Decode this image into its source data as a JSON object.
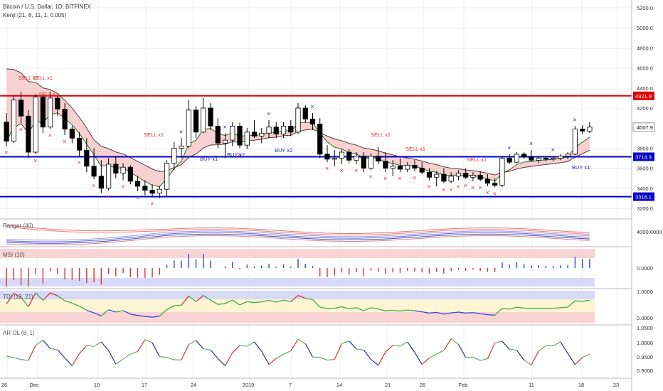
{
  "header": {
    "title": "Bitcoin / U.S. Dollar, 1D, BITFINEX",
    "indicator": "Kenji (21, 8, 11, 1, 0.005)"
  },
  "panels": {
    "ranger": {
      "label": "Ranger (40)",
      "value": "4000.0000"
    },
    "msi": {
      "label": "MSI (10)",
      "value": "0.0000"
    },
    "tdi": {
      "label": "TDI (13, 21)",
      "ticks": [
        "1.0000",
        "0.0000"
      ]
    },
    "arol": {
      "label": "AR OL (8, 1)",
      "ticks": [
        "1.0500",
        "1.0000",
        "0.9500",
        "0.9000"
      ]
    }
  },
  "price_axis": {
    "ticks": [
      "5200.0",
      "5000.0",
      "4800.0",
      "4600.0",
      "4400.0",
      "4200.0",
      "3800.0",
      "3600.0",
      "3400.0",
      "3200.0"
    ],
    "last_price_label": "4007.9",
    "levels": [
      {
        "price": 4321.9,
        "label": "4321.9",
        "color": "#e00000"
      },
      {
        "price": 3714.3,
        "label": "3714.3",
        "color": "#0000cc"
      },
      {
        "price": 3316.1,
        "label": "3316.1",
        "color": "#0000cc"
      }
    ]
  },
  "time_axis": {
    "labels": [
      "26",
      "Dec",
      "10",
      "17",
      "24",
      "2019",
      "7",
      "14",
      "21",
      "26",
      "Feb",
      "11",
      "18",
      "23"
    ]
  },
  "signals": {
    "sell": [
      "SELL x1",
      "SELL x1",
      "SELL x1",
      "SELL x1",
      "SELL x1",
      "SELL x1",
      "SELL x1"
    ],
    "buy": [
      "BUY x1",
      "BUY x2",
      "BUY x2",
      "BUY x1"
    ]
  },
  "colors": {
    "up_candle": "#ffffff",
    "down_candle": "#000000",
    "resistance": "#e00000",
    "support": "#0000cc",
    "sell_marker": "#e03030",
    "buy_marker": "#2a2ab0",
    "cloud": "#f5c6c6",
    "tdi_red": "#dd3333",
    "tdi_blue": "#3344dd",
    "tdi_green": "#44aa44"
  },
  "chart_data": {
    "type": "candlestick",
    "instrument": "Bitcoin / U.S. Dollar",
    "timeframe": "1D",
    "exchange": "BITFINEX",
    "ylim": [
      3150,
      5300
    ],
    "candles_ohlc": [
      [
        4060,
        4150,
        3820,
        3870
      ],
      [
        3870,
        4330,
        3850,
        4280
      ],
      [
        4280,
        4360,
        4050,
        4120
      ],
      [
        4120,
        4180,
        3700,
        3760
      ],
      [
        3760,
        4340,
        3740,
        4310
      ],
      [
        4310,
        4340,
        3950,
        4010
      ],
      [
        4010,
        4360,
        3990,
        4300
      ],
      [
        4300,
        4320,
        4120,
        4190
      ],
      [
        4190,
        4250,
        3930,
        3990
      ],
      [
        3990,
        4020,
        3850,
        3900
      ],
      [
        3900,
        3960,
        3720,
        3780
      ],
      [
        3780,
        3900,
        3560,
        3620
      ],
      [
        3620,
        3800,
        3490,
        3520
      ],
      [
        3520,
        3680,
        3350,
        3400
      ],
      [
        3400,
        3700,
        3380,
        3640
      ],
      [
        3640,
        3720,
        3500,
        3550
      ],
      [
        3550,
        3650,
        3480,
        3610
      ],
      [
        3610,
        3630,
        3440,
        3470
      ],
      [
        3470,
        3520,
        3370,
        3420
      ],
      [
        3420,
        3480,
        3330,
        3380
      ],
      [
        3380,
        3440,
        3310,
        3350
      ],
      [
        3350,
        3420,
        3300,
        3390
      ],
      [
        3390,
        3680,
        3320,
        3650
      ],
      [
        3650,
        3860,
        3580,
        3800
      ],
      [
        3800,
        3900,
        3700,
        3820
      ],
      [
        3820,
        4280,
        3800,
        4180
      ],
      [
        4180,
        4220,
        3900,
        3960
      ],
      [
        3960,
        4300,
        3950,
        4200
      ],
      [
        4200,
        4250,
        3980,
        4020
      ],
      [
        4020,
        4100,
        3800,
        3850
      ],
      [
        3850,
        3950,
        3700,
        3880
      ],
      [
        3880,
        4060,
        3820,
        4020
      ],
      [
        4020,
        4050,
        3800,
        3830
      ],
      [
        3830,
        4000,
        3790,
        3960
      ],
      [
        3960,
        4080,
        3900,
        3920
      ],
      [
        3920,
        4000,
        3850,
        3950
      ],
      [
        3950,
        4080,
        3900,
        4010
      ],
      [
        4010,
        4060,
        3900,
        3940
      ],
      [
        3940,
        4060,
        3900,
        4020
      ],
      [
        4020,
        4080,
        3920,
        3960
      ],
      [
        3960,
        4250,
        3940,
        4200
      ],
      [
        4200,
        4230,
        4050,
        4090
      ],
      [
        4090,
        4150,
        3980,
        4040
      ],
      [
        4040,
        4100,
        3700,
        3740
      ],
      [
        3740,
        3830,
        3660,
        3690
      ],
      [
        3690,
        3780,
        3620,
        3700
      ],
      [
        3700,
        3790,
        3640,
        3760
      ],
      [
        3760,
        3790,
        3650,
        3680
      ],
      [
        3680,
        3760,
        3640,
        3720
      ],
      [
        3720,
        3760,
        3560,
        3600
      ],
      [
        3600,
        3750,
        3580,
        3720
      ],
      [
        3720,
        3810,
        3640,
        3670
      ],
      [
        3670,
        3760,
        3560,
        3600
      ],
      [
        3600,
        3680,
        3520,
        3620
      ],
      [
        3620,
        3700,
        3560,
        3590
      ],
      [
        3590,
        3660,
        3560,
        3630
      ],
      [
        3630,
        3680,
        3570,
        3600
      ],
      [
        3600,
        3660,
        3540,
        3560
      ],
      [
        3560,
        3600,
        3480,
        3510
      ],
      [
        3510,
        3570,
        3420,
        3540
      ],
      [
        3540,
        3600,
        3450,
        3470
      ],
      [
        3470,
        3560,
        3450,
        3520
      ],
      [
        3520,
        3580,
        3480,
        3550
      ],
      [
        3550,
        3600,
        3490,
        3510
      ],
      [
        3510,
        3560,
        3470,
        3530
      ],
      [
        3530,
        3570,
        3470,
        3490
      ],
      [
        3490,
        3540,
        3420,
        3450
      ],
      [
        3450,
        3500,
        3410,
        3430
      ],
      [
        3430,
        3720,
        3410,
        3700
      ],
      [
        3700,
        3740,
        3640,
        3660
      ],
      [
        3660,
        3760,
        3650,
        3740
      ],
      [
        3740,
        3760,
        3690,
        3710
      ],
      [
        3710,
        3780,
        3660,
        3680
      ],
      [
        3680,
        3720,
        3650,
        3700
      ],
      [
        3700,
        3720,
        3670,
        3690
      ],
      [
        3690,
        3720,
        3670,
        3700
      ],
      [
        3700,
        3740,
        3680,
        3720
      ],
      [
        3720,
        3760,
        3690,
        3740
      ],
      [
        3740,
        4020,
        3730,
        3990
      ],
      [
        3990,
        4030,
        3940,
        3970
      ],
      [
        3970,
        4060,
        3950,
        4010
      ]
    ]
  }
}
